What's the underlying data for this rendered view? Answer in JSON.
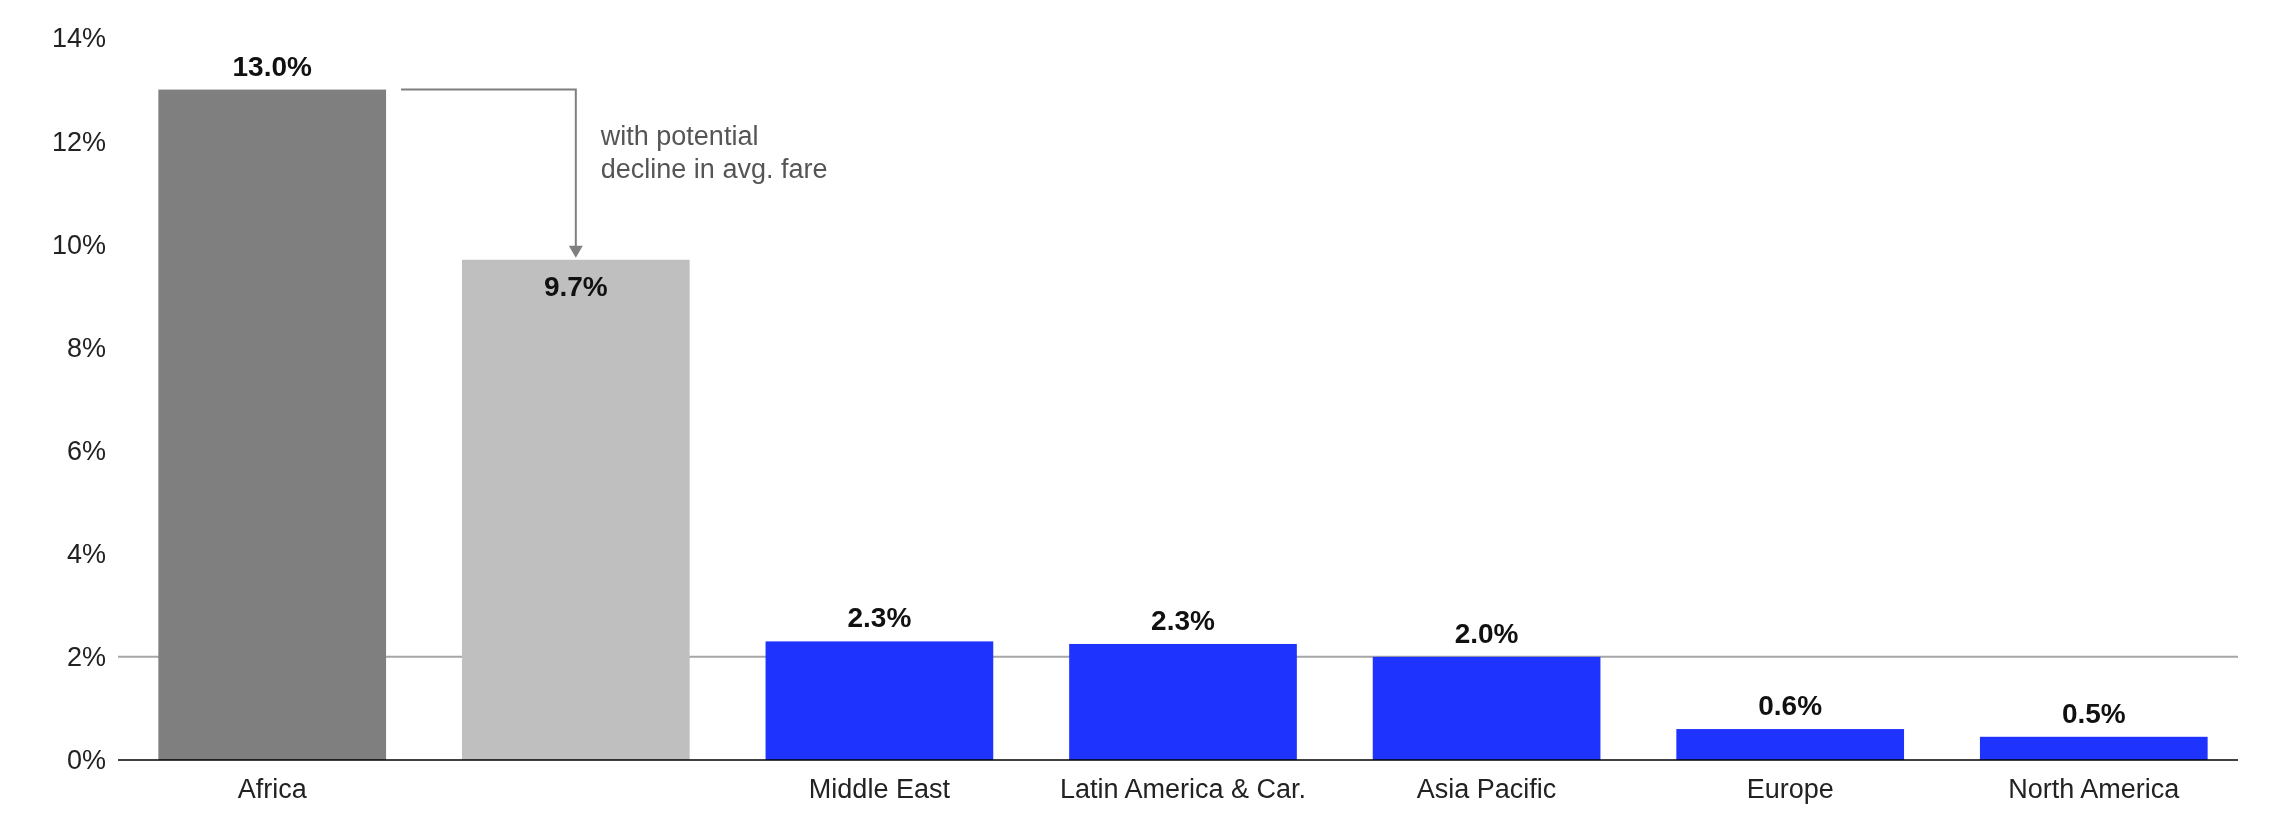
{
  "chart_data": {
    "type": "bar",
    "categories": [
      "Africa",
      null,
      "Middle East",
      "Latin America & Car.",
      "Asia Pacific",
      "Europe",
      "North America"
    ],
    "values": [
      13.0,
      9.7,
      2.3,
      2.25,
      2.0,
      0.6,
      0.45
    ],
    "value_labels": [
      "13.0%",
      "9.7%",
      "2.3%",
      "2.3%",
      "2.0%",
      "0.6%",
      "0.5%"
    ],
    "colors": [
      "#7f7f7f",
      "#bfbfbf",
      "#1f33ff",
      "#1f33ff",
      "#1f33ff",
      "#1f33ff",
      "#1f33ff"
    ],
    "ylim": [
      0,
      14
    ],
    "yticks": [
      {
        "value": 0,
        "label": "0%"
      },
      {
        "value": 2,
        "label": "2%"
      },
      {
        "value": 4,
        "label": "4%"
      },
      {
        "value": 6,
        "label": "6%"
      },
      {
        "value": 8,
        "label": "8%"
      },
      {
        "value": 10,
        "label": "10%"
      },
      {
        "value": 12,
        "label": "12%"
      },
      {
        "value": 14,
        "label": "14%"
      }
    ],
    "ref_lines": [
      {
        "axis": "y",
        "value": 2,
        "color": "#a6a6a6"
      }
    ],
    "annotations": [
      "with potential decline in avg. fare"
    ],
    "grid": false
  }
}
